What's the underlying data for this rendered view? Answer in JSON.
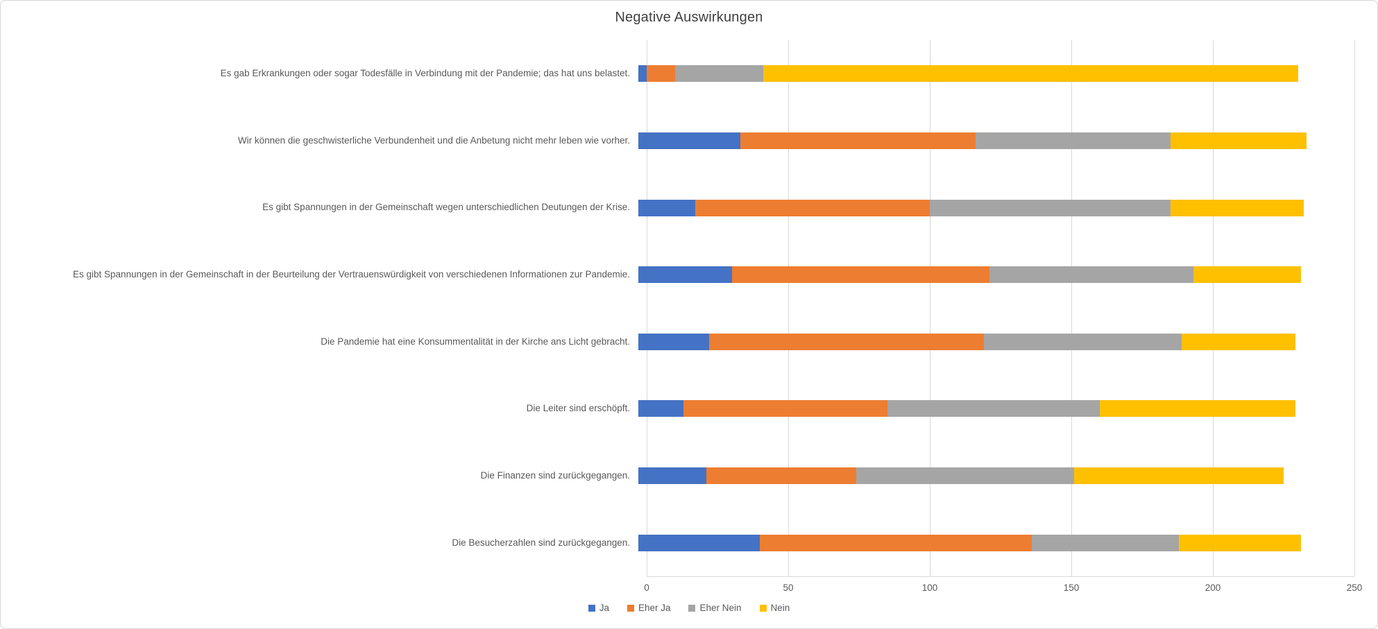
{
  "chart_data": {
    "type": "bar",
    "orientation": "horizontal",
    "stacked": true,
    "title": "Negative Auswirkungen",
    "categories": [
      "Es gab Erkrankungen oder sogar Todesfälle in Verbindung mit der Pandemie; das hat uns belastet.",
      "Wir können die geschwisterliche Verbundenheit und die Anbetung nicht mehr leben wie vorher.",
      "Es gibt Spannungen in der Gemeinschaft wegen unterschiedlichen Deutungen der Krise.",
      "Es gibt Spannungen in der Gemeinschaft in der Beurteilung der Vertrauenswürdigkeit von verschiedenen Informationen zur Pandemie.",
      "Die Pandemie hat eine Konsummentalität in der Kirche ans Licht gebracht.",
      "Die Leiter sind erschöpft.",
      "Die Finanzen sind zurückgegangen.",
      "Die Besucherzahlen sind zurückgegangen."
    ],
    "series": [
      {
        "name": "Ja",
        "color": "#4472C4",
        "values": [
          3,
          36,
          20,
          33,
          25,
          16,
          24,
          43
        ]
      },
      {
        "name": "Eher Ja",
        "color": "#ED7D31",
        "values": [
          10,
          83,
          83,
          91,
          97,
          72,
          53,
          96
        ]
      },
      {
        "name": "Eher Nein",
        "color": "#A5A5A5",
        "values": [
          31,
          69,
          85,
          72,
          70,
          75,
          77,
          52
        ]
      },
      {
        "name": "Nein",
        "color": "#FFC000",
        "values": [
          189,
          48,
          47,
          38,
          40,
          69,
          74,
          43
        ]
      }
    ],
    "xlim": [
      0,
      250
    ],
    "x_ticks": [
      0,
      50,
      100,
      150,
      200,
      250
    ],
    "grid": true,
    "gridline_color": "#d9d9d9",
    "legend_position": "bottom",
    "text_color": "#595959",
    "title_color": "#404040"
  }
}
